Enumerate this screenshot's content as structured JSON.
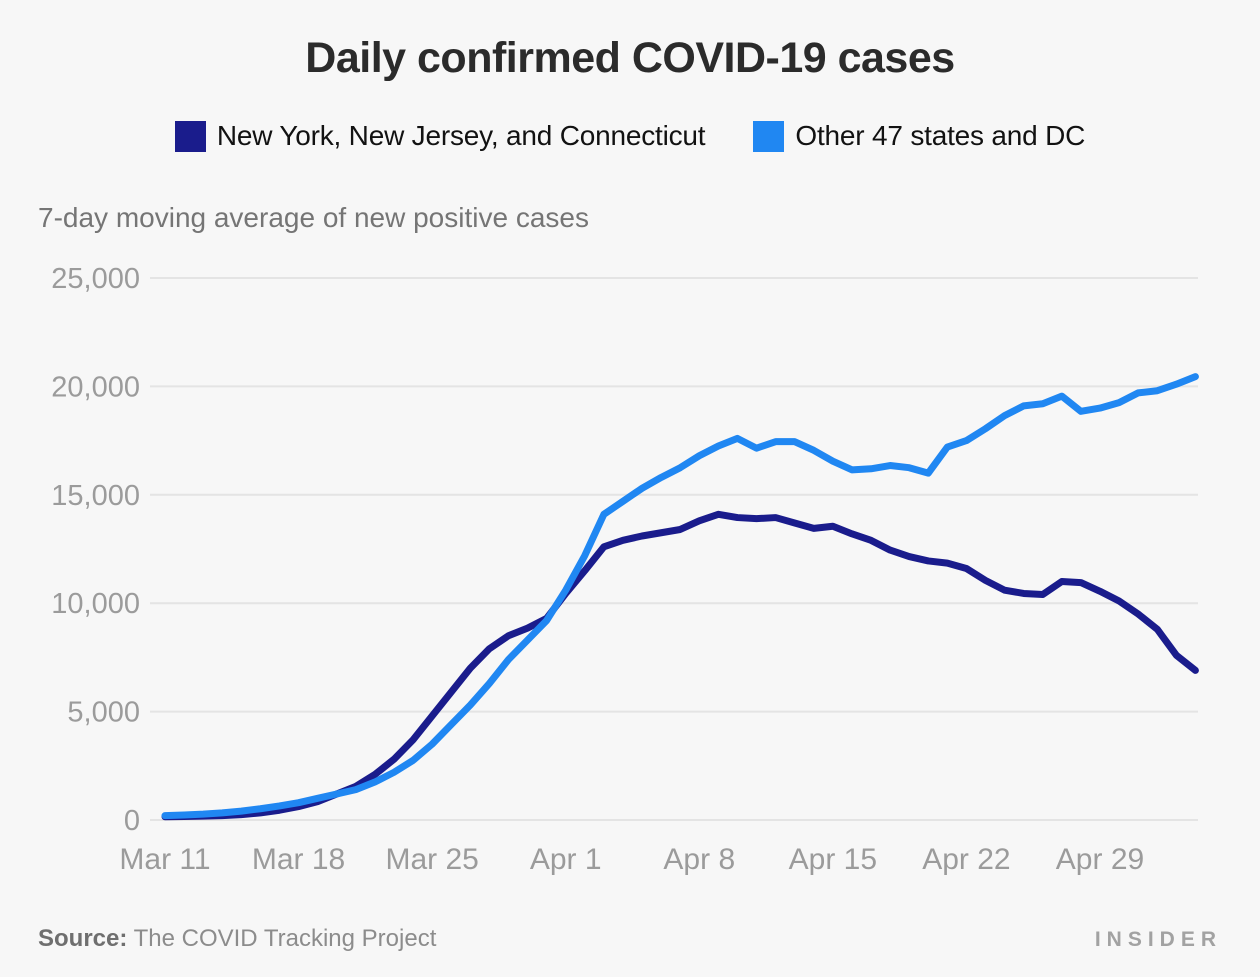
{
  "page": {
    "background": "#f7f7f7"
  },
  "header": {
    "title": "Daily confirmed COVID-19 cases"
  },
  "legend": {
    "items": [
      {
        "label": "New York, New Jersey, and Connecticut",
        "color": "#1a1c8c"
      },
      {
        "label": "Other 47 states and DC",
        "color": "#2087f2"
      }
    ]
  },
  "subtitle": "7-day moving average of new positive cases",
  "chart_data": {
    "type": "line",
    "title": "Daily confirmed COVID-19 cases",
    "subtitle": "7-day moving average of new positive cases",
    "x_unit": "date (daily, Mar 11 - May 4, 2020)",
    "x_tick_labels": [
      "Mar 11",
      "Mar 18",
      "Mar 25",
      "Apr 1",
      "Apr 8",
      "Apr 15",
      "Apr 22",
      "Apr 29"
    ],
    "x_tick_day_index": [
      0,
      7,
      14,
      21,
      28,
      35,
      42,
      49
    ],
    "x_range_days": [
      0,
      54
    ],
    "ylim": [
      0,
      25000
    ],
    "y_ticks": [
      0,
      5000,
      10000,
      15000,
      20000,
      25000
    ],
    "y_tick_labels": [
      "0",
      "5,000",
      "10,000",
      "15,000",
      "20,000",
      "25,000"
    ],
    "grid": "horizontal",
    "legend_position": "top",
    "grid_color": "#e4e4e4",
    "axis_label_color": "#9b9b9b",
    "series": [
      {
        "name": "New York, New Jersey, and Connecticut",
        "color": "#1a1c8c",
        "values": [
          150,
          160,
          180,
          200,
          250,
          330,
          450,
          620,
          850,
          1200,
          1550,
          2100,
          2800,
          3700,
          4800,
          5900,
          7000,
          7900,
          8500,
          8850,
          9300,
          10450,
          11500,
          12600,
          12900,
          13100,
          13250,
          13400,
          13800,
          14100,
          13950,
          13900,
          13950,
          13700,
          13450,
          13550,
          13200,
          12900,
          12450,
          12150,
          11950,
          11850,
          11600,
          11050,
          10600,
          10450,
          10400,
          11000,
          10950,
          10550,
          10100,
          9500,
          8800,
          7600,
          6900
        ]
      },
      {
        "name": "Other 47 states and DC",
        "color": "#2087f2",
        "values": [
          200,
          230,
          270,
          330,
          410,
          520,
          650,
          800,
          1000,
          1200,
          1400,
          1750,
          2200,
          2750,
          3500,
          4400,
          5300,
          6300,
          7400,
          8300,
          9200,
          10600,
          12200,
          14100,
          14700,
          15300,
          15800,
          16250,
          16800,
          17250,
          17600,
          17150,
          17450,
          17450,
          17050,
          16550,
          16150,
          16200,
          16350,
          16250,
          16000,
          17200,
          17500,
          18050,
          18650,
          19100,
          19200,
          19550,
          18850,
          19000,
          19250,
          19700,
          19800,
          20100,
          20450
        ]
      }
    ]
  },
  "footer": {
    "source_label": "Source:",
    "source_text": "The COVID Tracking Project",
    "brand": "INSIDER"
  }
}
